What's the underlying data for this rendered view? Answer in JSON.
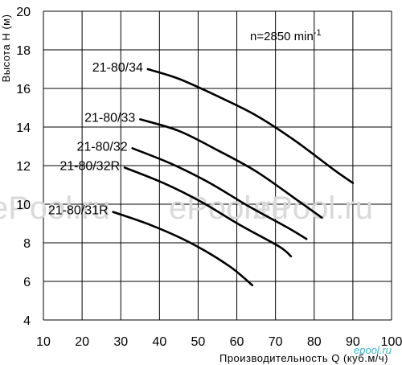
{
  "chart_data": {
    "type": "line",
    "xlabel": "Производительность Q (куб.м/ч)",
    "ylabel": "Высота Н (м)",
    "annotation": {
      "text": "n=2850 min",
      "superscript": "-1"
    },
    "xlim": [
      10,
      100
    ],
    "ylim": [
      4,
      20
    ],
    "xticks": [
      10,
      20,
      30,
      40,
      50,
      60,
      70,
      80,
      90,
      100
    ],
    "yticks": [
      4,
      6,
      8,
      10,
      12,
      14,
      16,
      18,
      20
    ],
    "grid": true,
    "series": [
      {
        "name": "21-80/34",
        "x": [
          37,
          45,
          55,
          65,
          75,
          85,
          90
        ],
        "y": [
          17.0,
          16.5,
          15.6,
          14.6,
          13.3,
          11.8,
          11.1
        ]
      },
      {
        "name": "21-80/33",
        "x": [
          35,
          45,
          55,
          65,
          75,
          82
        ],
        "y": [
          14.4,
          13.8,
          12.8,
          11.7,
          10.3,
          9.3
        ]
      },
      {
        "name": "21-80/32",
        "x": [
          33,
          43,
          53,
          63,
          73,
          78
        ],
        "y": [
          12.9,
          12.1,
          11.1,
          9.9,
          8.8,
          8.2
        ]
      },
      {
        "name": "21-80/32R",
        "x": [
          31,
          41,
          51,
          61,
          71,
          74
        ],
        "y": [
          11.9,
          11.1,
          10.1,
          8.9,
          7.8,
          7.3
        ]
      },
      {
        "name": "21-80/31R",
        "x": [
          28,
          38,
          48,
          58,
          64
        ],
        "y": [
          9.6,
          8.9,
          8.0,
          6.8,
          5.8
        ]
      }
    ]
  },
  "watermarks": [
    "ePool.ru",
    "ePool.ru",
    "ePool.ru"
  ],
  "logo_text": "epool.ru"
}
